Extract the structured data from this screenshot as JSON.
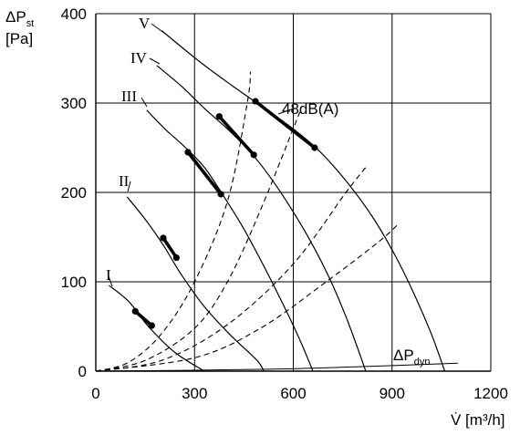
{
  "chart_data": {
    "type": "line",
    "ylabel_main": "ΔP",
    "ylabel_sub": "st",
    "ylabel_unit": "[Pa]",
    "xlabel": "V̇ [m³/h]",
    "xlim": [
      0,
      1200
    ],
    "ylim": [
      0,
      400
    ],
    "xticks": [
      0,
      300,
      600,
      900,
      1200
    ],
    "yticks": [
      0,
      100,
      200,
      300,
      400
    ],
    "grid": true,
    "series": [
      {
        "name": "I",
        "points": [
          [
            40,
            96
          ],
          [
            100,
            78
          ],
          [
            160,
            50
          ],
          [
            240,
            21
          ],
          [
            330,
            0
          ]
        ],
        "marked": [
          [
            120,
            67
          ],
          [
            170,
            51
          ]
        ]
      },
      {
        "name": "II",
        "points": [
          [
            95,
            195
          ],
          [
            150,
            170
          ],
          [
            205,
            141
          ],
          [
            260,
            108
          ],
          [
            330,
            72
          ],
          [
            410,
            40
          ],
          [
            490,
            12
          ],
          [
            510,
            0
          ]
        ],
        "marked": [
          [
            205,
            149
          ],
          [
            245,
            127
          ]
        ]
      },
      {
        "name": "III",
        "points": [
          [
            155,
            292
          ],
          [
            210,
            271
          ],
          [
            270,
            251
          ],
          [
            330,
            228
          ],
          [
            390,
            195
          ],
          [
            450,
            159
          ],
          [
            510,
            118
          ],
          [
            570,
            74
          ],
          [
            620,
            35
          ],
          [
            660,
            0
          ]
        ],
        "marked": [
          [
            280,
            245
          ],
          [
            380,
            198
          ]
        ]
      },
      {
        "name": "IV",
        "points": [
          [
            185,
            342
          ],
          [
            260,
            319
          ],
          [
            330,
            294
          ],
          [
            400,
            271
          ],
          [
            470,
            245
          ],
          [
            530,
            217
          ],
          [
            590,
            184
          ],
          [
            650,
            147
          ],
          [
            710,
            104
          ],
          [
            760,
            61
          ],
          [
            800,
            21
          ],
          [
            820,
            0
          ]
        ],
        "marked": [
          [
            375,
            285
          ],
          [
            480,
            242
          ]
        ]
      },
      {
        "name": "V",
        "points": [
          [
            200,
            381
          ],
          [
            320,
            345
          ],
          [
            420,
            318
          ],
          [
            520,
            292
          ],
          [
            600,
            271
          ],
          [
            680,
            246
          ],
          [
            760,
            213
          ],
          [
            840,
            173
          ],
          [
            910,
            129
          ],
          [
            970,
            84
          ],
          [
            1020,
            41
          ],
          [
            1060,
            0
          ]
        ],
        "marked": [
          [
            485,
            302
          ],
          [
            665,
            250
          ]
        ]
      }
    ],
    "system_curves": [
      {
        "points": [
          [
            0,
            0
          ],
          [
            100,
            10
          ],
          [
            200,
            42
          ],
          [
            300,
            100
          ],
          [
            400,
            190
          ],
          [
            460,
            300
          ],
          [
            470,
            335
          ]
        ]
      },
      {
        "points": [
          [
            0,
            0
          ],
          [
            150,
            12
          ],
          [
            300,
            48
          ],
          [
            400,
            100
          ],
          [
            500,
            180
          ],
          [
            620,
            290
          ]
        ]
      },
      {
        "points": [
          [
            0,
            0
          ],
          [
            200,
            12
          ],
          [
            400,
            52
          ],
          [
            600,
            120
          ],
          [
            760,
            200
          ],
          [
            820,
            228
          ]
        ]
      },
      {
        "points": [
          [
            0,
            0
          ],
          [
            300,
            15
          ],
          [
            500,
            48
          ],
          [
            700,
            100
          ],
          [
            860,
            145
          ],
          [
            920,
            165
          ]
        ]
      }
    ],
    "dynamic_pressure": {
      "points": [
        [
          0,
          0
        ],
        [
          500,
          2
        ],
        [
          800,
          5
        ],
        [
          1100,
          9
        ]
      ],
      "label_main": "ΔP",
      "label_sub": "dyn"
    },
    "curve_labels": [
      "V",
      "IV",
      "III",
      "II",
      "I"
    ],
    "annotation": "48dB(A)"
  }
}
